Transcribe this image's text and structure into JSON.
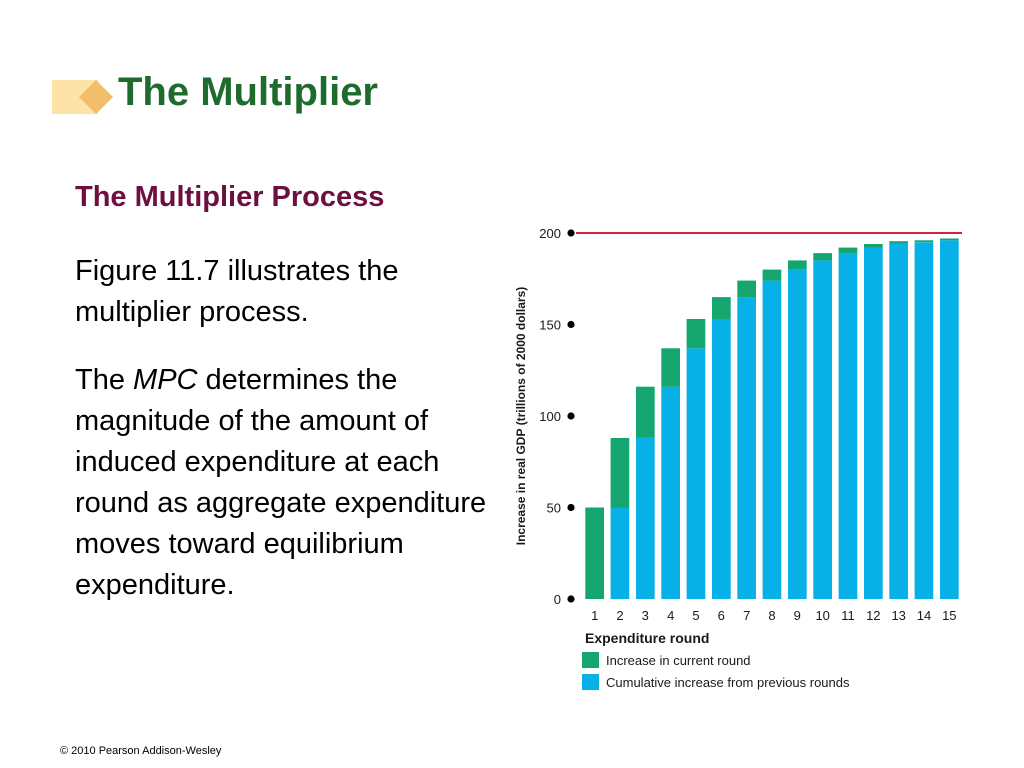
{
  "slide": {
    "title": "The Multiplier",
    "subtitle": "The Multiplier Process",
    "paragraph1": "Figure 11.7 illustrates the multiplier process.",
    "paragraph2": {
      "before": "The ",
      "italic": "MPC",
      "after": " determines the magnitude of the amount of induced expenditure at each round as aggregate expenditure moves toward equilibrium expenditure."
    },
    "copyright": "© 2010 Pearson Addison-Wesley"
  },
  "colors": {
    "title": "#1e6b2e",
    "subtitle": "#6b1040",
    "current_round": "#15a56e",
    "cumulative": "#08b0e8",
    "equilibrium_line": "#d2233a"
  },
  "chart_data": {
    "type": "bar",
    "stacked": true,
    "xlabel": "Expenditure round",
    "ylabel": "Increase in real GDP (trillions of 2000 dollars)",
    "ylim": [
      0,
      200
    ],
    "yticks": [
      0,
      50,
      100,
      150,
      200
    ],
    "categories": [
      "1",
      "2",
      "3",
      "4",
      "5",
      "6",
      "7",
      "8",
      "9",
      "10",
      "11",
      "12",
      "13",
      "14",
      "15"
    ],
    "series": [
      {
        "name": "Cumulative increase from previous rounds",
        "color": "#08b0e8",
        "values": [
          0,
          50,
          88,
          116,
          137,
          153,
          165,
          174,
          180,
          185,
          189,
          192,
          194,
          195,
          196
        ]
      },
      {
        "name": "Increase in current round",
        "color": "#15a56e",
        "values": [
          50,
          38,
          28,
          21,
          16,
          12,
          9,
          6,
          5,
          4,
          3,
          2,
          1.5,
          1,
          1
        ]
      }
    ],
    "reference_line": {
      "y": 200,
      "color": "#d2233a"
    },
    "legend": [
      {
        "label": "Increase in current round",
        "color": "#15a56e"
      },
      {
        "label": "Cumulative increase from previous rounds",
        "color": "#08b0e8"
      }
    ],
    "legend_position": "bottom-left",
    "grid": false
  }
}
